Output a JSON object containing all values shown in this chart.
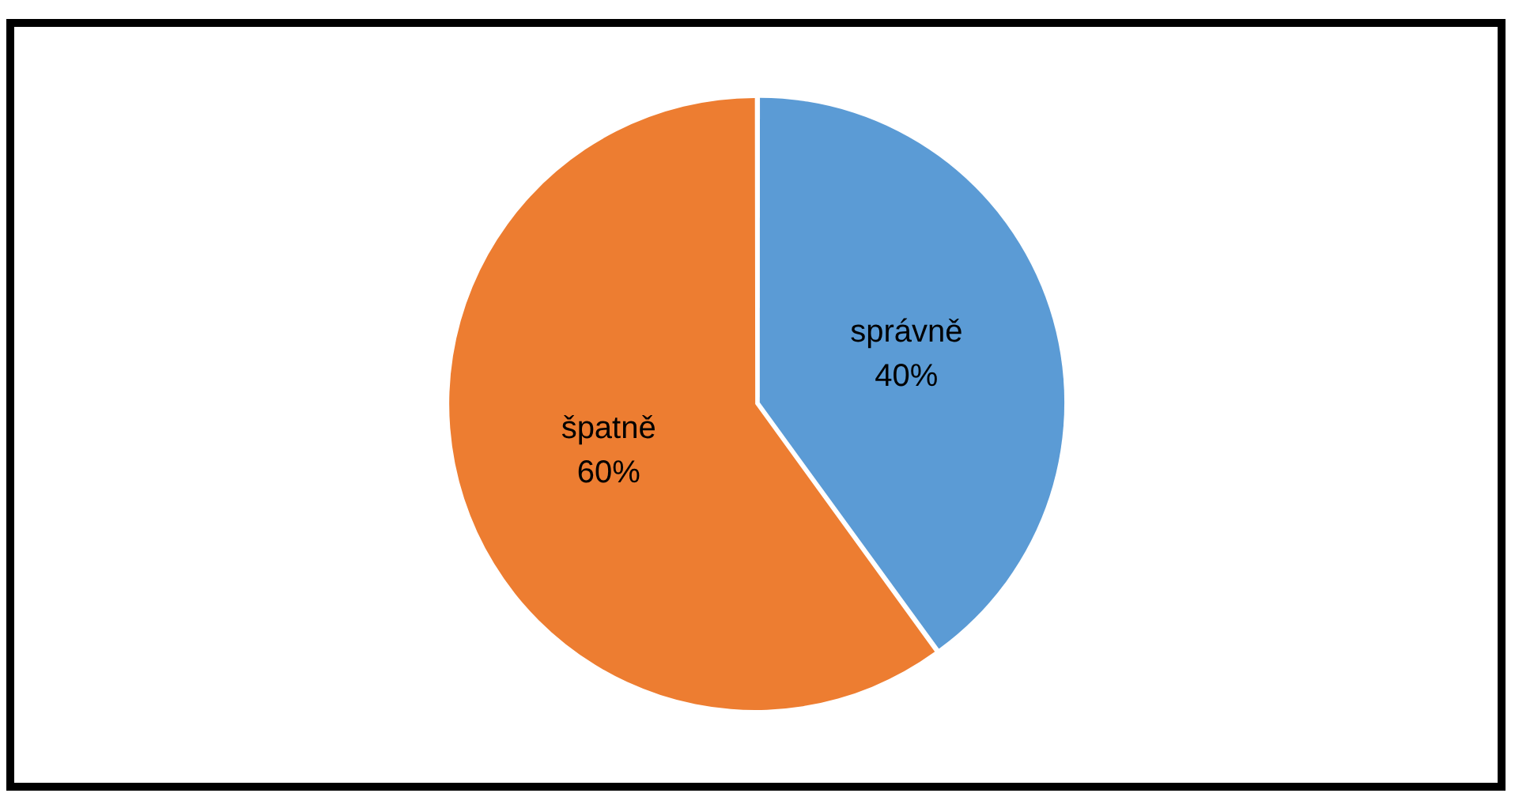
{
  "chart_data": {
    "type": "pie",
    "categories": [
      "správně",
      "špatně"
    ],
    "values": [
      40,
      60
    ],
    "colors": [
      "#5b9bd5",
      "#ed7d31"
    ],
    "value_labels": [
      "40%",
      "60%"
    ],
    "legend": false
  }
}
